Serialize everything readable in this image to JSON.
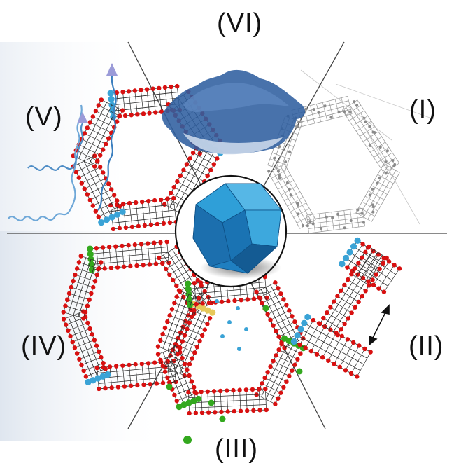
{
  "figure": {
    "sector_labels": [
      "(VI)",
      "(I)",
      "(II)",
      "(III)",
      "(IV)",
      "(V)"
    ]
  },
  "colors": {
    "oxygen": "#d81010",
    "framework_bond": "#2a2a2a",
    "metal_node": "#3aa3d6",
    "guest_ion": "#33a81e",
    "dopant": "#e6c85a",
    "polyhedron": "#1f7fc0",
    "cloud": "#2f5f9f",
    "wave": "#6fa8d8",
    "wave_arrow": "#9b9bd8",
    "divider": "#333333"
  },
  "icons": [
    "polyhedron-icon",
    "cloud-icon",
    "wave-arrow-icon",
    "double-arrow-icon"
  ]
}
